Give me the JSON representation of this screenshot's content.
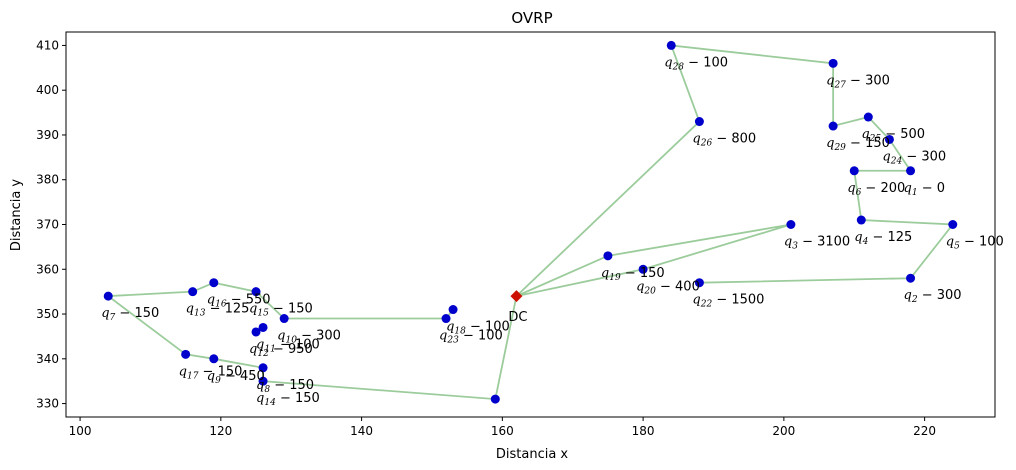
{
  "chart_data": {
    "type": "scatter",
    "title": "OVRP",
    "xlabel": "Distancia x",
    "ylabel": "Distancia y",
    "xlim": [
      98,
      230
    ],
    "ylim": [
      327,
      413
    ],
    "xticks": [
      100,
      120,
      140,
      160,
      180,
      200,
      220
    ],
    "yticks": [
      330,
      340,
      350,
      360,
      370,
      380,
      390,
      400,
      410
    ],
    "grid": false,
    "colors": {
      "route": "#9ccc9c",
      "customer": "#0000cc",
      "depot": "#cc1100"
    },
    "depot": {
      "label": "DC",
      "x": 162,
      "y": 354
    },
    "customers": [
      {
        "id": "1",
        "demand": "0",
        "x": 218,
        "y": 382
      },
      {
        "id": "2",
        "demand": "300",
        "x": 218,
        "y": 358
      },
      {
        "id": "3",
        "demand": "3100",
        "x": 201,
        "y": 370
      },
      {
        "id": "4",
        "demand": "125",
        "x": 211,
        "y": 371
      },
      {
        "id": "5",
        "demand": "100",
        "x": 224,
        "y": 370
      },
      {
        "id": "6",
        "demand": "200",
        "x": 210,
        "y": 382
      },
      {
        "id": "7",
        "demand": "150",
        "x": 104,
        "y": 354
      },
      {
        "id": "8",
        "demand": "150",
        "x": 126,
        "y": 338
      },
      {
        "id": "9",
        "demand": "450",
        "x": 119,
        "y": 340
      },
      {
        "id": "10",
        "demand": "300",
        "x": 129,
        "y": 349
      },
      {
        "id": "11",
        "demand": "100",
        "x": 126,
        "y": 347
      },
      {
        "id": "12",
        "demand": "950",
        "x": 125,
        "y": 346
      },
      {
        "id": "13",
        "demand": "125",
        "x": 116,
        "y": 355
      },
      {
        "id": "14",
        "demand": "150",
        "x": 126,
        "y": 335
      },
      {
        "id": "15",
        "demand": "150",
        "x": 125,
        "y": 355
      },
      {
        "id": "16",
        "demand": "550",
        "x": 119,
        "y": 357
      },
      {
        "id": "17",
        "demand": "150",
        "x": 115,
        "y": 341
      },
      {
        "id": "18",
        "demand": "100",
        "x": 153,
        "y": 351
      },
      {
        "id": "19",
        "demand": "150",
        "x": 175,
        "y": 363
      },
      {
        "id": "20",
        "demand": "400",
        "x": 180,
        "y": 360
      },
      {
        "id": "21",
        "demand": "",
        "x": 159,
        "y": 331
      },
      {
        "id": "22",
        "demand": "1500",
        "x": 188,
        "y": 357
      },
      {
        "id": "23",
        "demand": "100",
        "x": 152,
        "y": 349
      },
      {
        "id": "24",
        "demand": "300",
        "x": 215,
        "y": 389
      },
      {
        "id": "25",
        "demand": "500",
        "x": 212,
        "y": 394
      },
      {
        "id": "26",
        "demand": "800",
        "x": 188,
        "y": 393
      },
      {
        "id": "27",
        "demand": "300",
        "x": 207,
        "y": 406
      },
      {
        "id": "28",
        "demand": "100",
        "x": 184,
        "y": 410
      },
      {
        "id": "29",
        "demand": "150",
        "x": 207,
        "y": 392
      }
    ],
    "routes": [
      [
        "DC",
        "26",
        "28",
        "27",
        "29",
        "25",
        "24",
        "1",
        "6",
        "4",
        "5",
        "2",
        "22"
      ],
      [
        "DC",
        "19",
        "3",
        "20",
        "DC"
      ],
      [
        "DC",
        "21",
        "14",
        "8",
        "9",
        "17",
        "7",
        "13",
        "16",
        "15",
        "10",
        "23",
        "18"
      ]
    ]
  }
}
